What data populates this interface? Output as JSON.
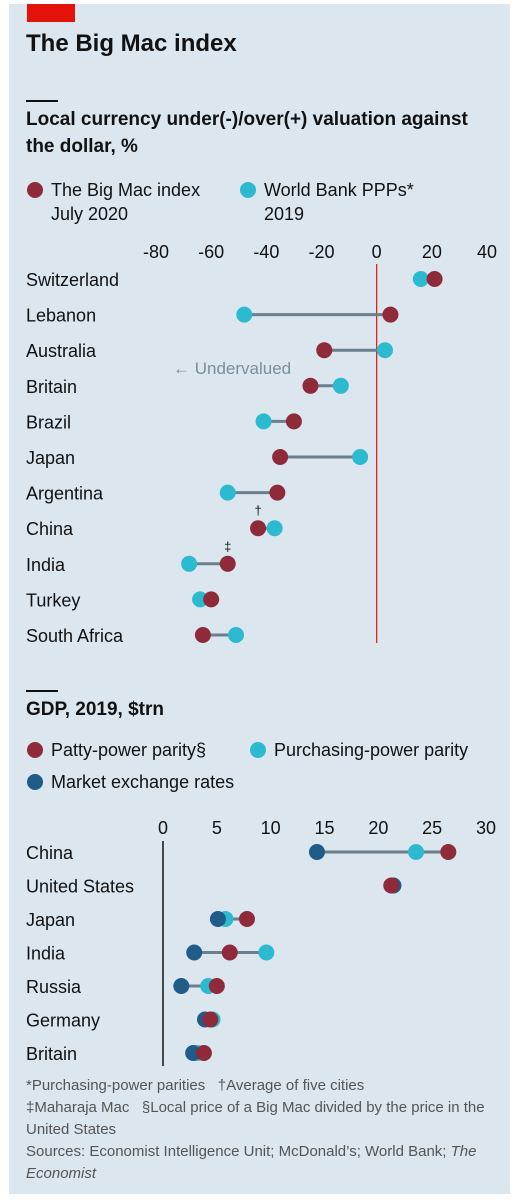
{
  "title": "The Big Mac index",
  "chart_data": [
    {
      "type": "dumbbell",
      "subtitle": "Local currency under(-)/over(+) valuation against the dollar, %",
      "legend": [
        {
          "label": "The Big Mac index",
          "sublabel": "July 2020",
          "color": "#8e2a3a"
        },
        {
          "label": "World Bank PPPs*",
          "sublabel": "2019",
          "color": "#2bbad0"
        }
      ],
      "x_ticks": [
        "-80",
        "-60",
        "-40",
        "-20",
        "0",
        "20",
        "40"
      ],
      "xlim": [
        -80,
        40
      ],
      "annotation": "← Undervalued",
      "categories": [
        "Switzerland",
        "Lebanon",
        "Australia",
        "Britain",
        "Brazil",
        "Japan",
        "Argentina",
        "China",
        "India",
        "Turkey",
        "South Africa"
      ],
      "category_marks": [
        "",
        "",
        "",
        "",
        "",
        "",
        "",
        "†",
        "‡",
        "",
        ""
      ],
      "series": [
        {
          "name": "The Big Mac index",
          "values": [
            21,
            5,
            -19,
            -24,
            -30,
            -35,
            -36,
            -43,
            -54,
            -60,
            -63
          ]
        },
        {
          "name": "World Bank PPPs*",
          "values": [
            16,
            -48,
            3,
            -13,
            -41,
            -6,
            -54,
            -37,
            -68,
            -64,
            -51
          ]
        }
      ]
    },
    {
      "type": "dumbbell",
      "subtitle": "GDP, 2019, $trn",
      "legend": [
        {
          "label": "Patty-power parity§",
          "color": "#8e2a3a"
        },
        {
          "label": "Purchasing-power parity",
          "color": "#2bbad0"
        },
        {
          "label": "Market exchange rates",
          "color": "#1f5c88"
        }
      ],
      "x_ticks": [
        "0",
        "5",
        "10",
        "15",
        "20",
        "25",
        "30"
      ],
      "xlim": [
        0,
        30
      ],
      "categories": [
        "China",
        "United States",
        "Japan",
        "India",
        "Russia",
        "Germany",
        "Britain"
      ],
      "series": [
        {
          "name": "Patty-power parity§",
          "values": [
            26.5,
            21.2,
            7.8,
            6.2,
            5.0,
            4.4,
            3.8
          ]
        },
        {
          "name": "Purchasing-power parity",
          "values": [
            23.5,
            21.4,
            5.8,
            9.6,
            4.2,
            4.6,
            3.2
          ]
        },
        {
          "name": "Market exchange rates",
          "values": [
            14.3,
            21.4,
            5.1,
            2.9,
            1.7,
            3.9,
            2.8
          ]
        }
      ]
    }
  ],
  "footnotes": {
    "line1": "*Purchasing-power parities",
    "dagger": "†Average of five cities",
    "line2": "‡Maharaja Mac",
    "section": "§Local price of a Big Mac divided by the price in the United States",
    "sources": "Sources: Economist Intelligence Unit; McDonald’s; World Bank; ",
    "sources_italic": "The Economist"
  }
}
